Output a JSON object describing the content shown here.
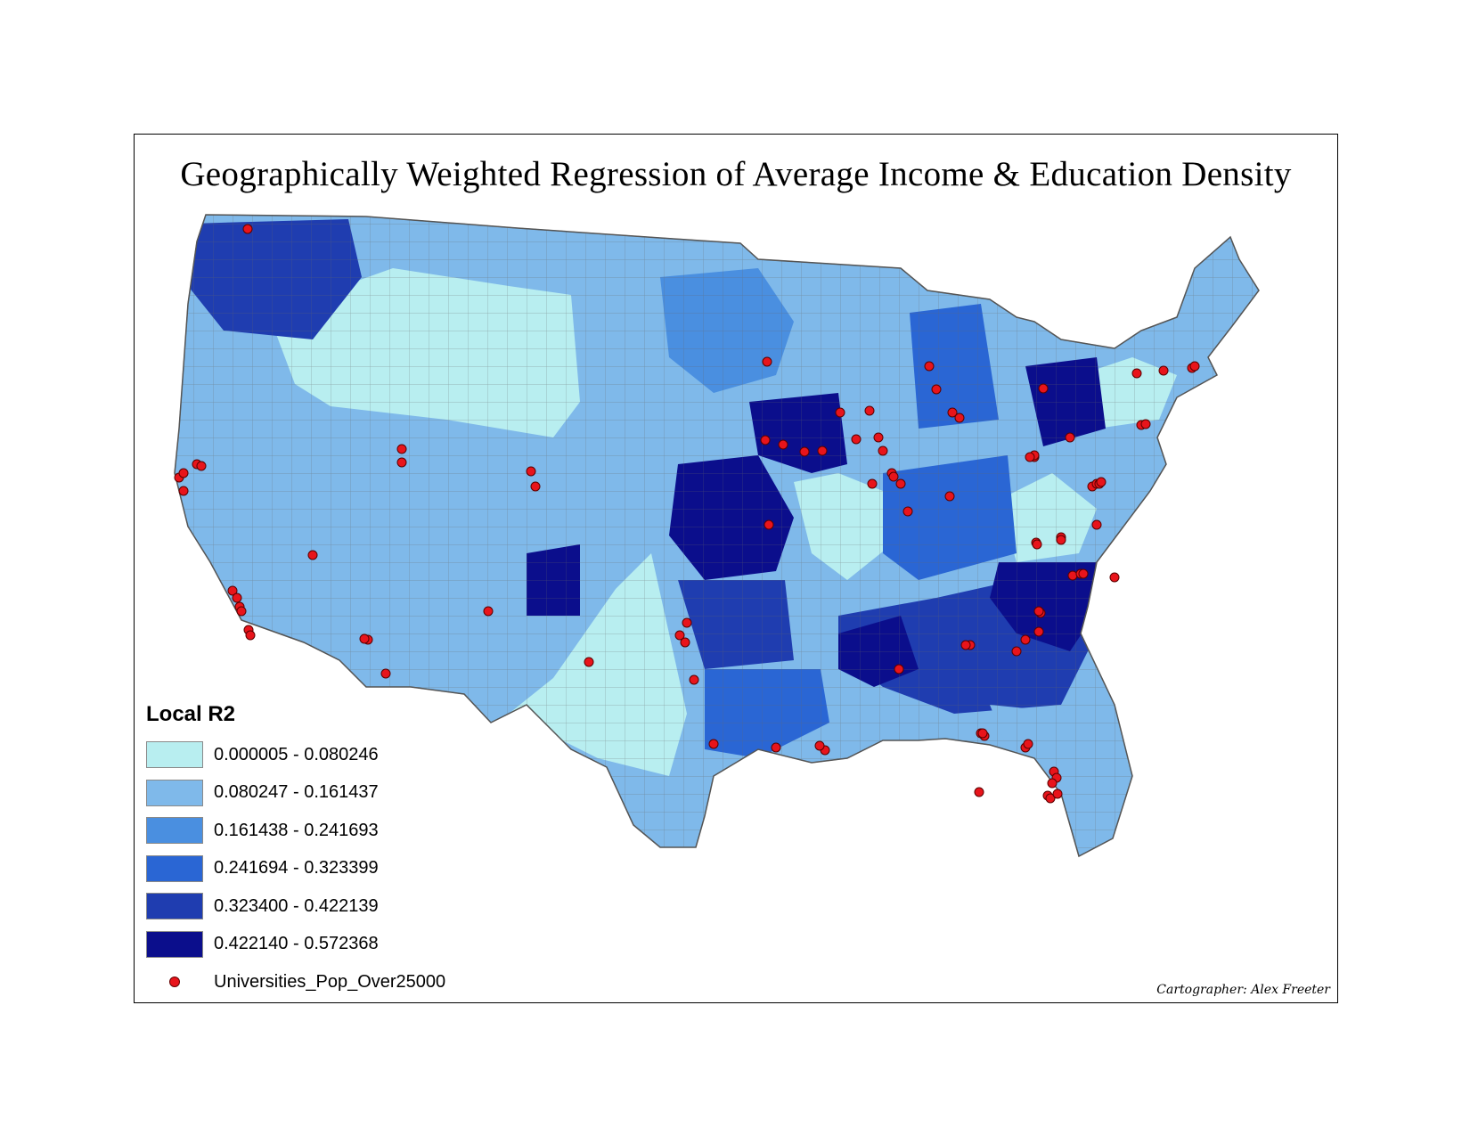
{
  "title": "Geographically Weighted Regression of Average Income & Education Density",
  "legend": {
    "title": "Local R2",
    "classes": [
      {
        "label": "0.000005 - 0.080246",
        "color": "#b8eef0"
      },
      {
        "label": "0.080247 - 0.161437",
        "color": "#7fb9ea"
      },
      {
        "label": "0.161438 - 0.241693",
        "color": "#4a8fe0"
      },
      {
        "label": "0.241694 - 0.323399",
        "color": "#2a66d4"
      },
      {
        "label": "0.323400 - 0.422139",
        "color": "#1f3db0"
      },
      {
        "label": "0.422140 - 0.572368",
        "color": "#0b0e8c"
      }
    ],
    "points_label": "Universities_Pop_Over25000",
    "point_color": "#e8141b"
  },
  "credit": "Cartographer: Alex Freeter"
}
